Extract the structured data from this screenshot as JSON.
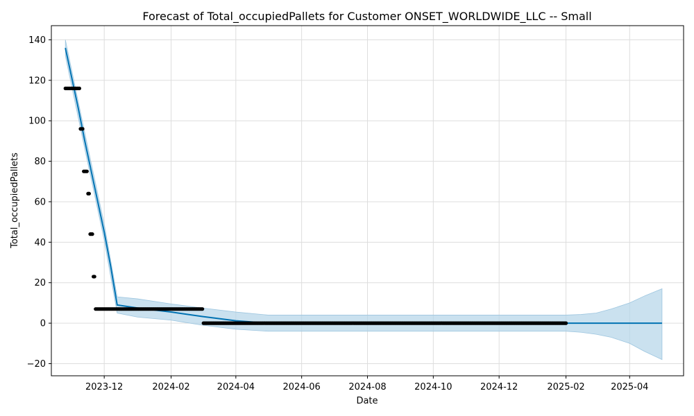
{
  "chart_data": {
    "type": "line",
    "title": "Forecast of Total_occupiedPallets for Customer ONSET_WORLDWIDE_LLC -- Small",
    "xlabel": "Date",
    "ylabel": "Total_occupiedPallets",
    "xlim": [
      "2023-10-13",
      "2025-05-21"
    ],
    "ylim": [
      -26,
      147
    ],
    "grid": true,
    "x_ticks": [
      {
        "date": "2023-12-01",
        "label": "2023-12"
      },
      {
        "date": "2024-02-01",
        "label": "2024-02"
      },
      {
        "date": "2024-04-01",
        "label": "2024-04"
      },
      {
        "date": "2024-06-01",
        "label": "2024-06"
      },
      {
        "date": "2024-08-01",
        "label": "2024-08"
      },
      {
        "date": "2024-10-01",
        "label": "2024-10"
      },
      {
        "date": "2024-12-01",
        "label": "2024-12"
      },
      {
        "date": "2025-02-01",
        "label": "2025-02"
      },
      {
        "date": "2025-04-01",
        "label": "2025-04"
      }
    ],
    "y_ticks": [
      {
        "value": -20,
        "label": "−20"
      },
      {
        "value": 0,
        "label": "0"
      },
      {
        "value": 20,
        "label": "20"
      },
      {
        "value": 40,
        "label": "40"
      },
      {
        "value": 60,
        "label": "60"
      },
      {
        "value": 80,
        "label": "80"
      },
      {
        "value": 100,
        "label": "100"
      },
      {
        "value": 120,
        "label": "120"
      },
      {
        "value": 140,
        "label": "140"
      }
    ],
    "colors": {
      "forecast_line": "#0072B2",
      "uncertainty_band": "#B4D4E8",
      "observed_points": "#000000",
      "grid": "#dddddd"
    },
    "series": [
      {
        "kind": "forecast",
        "points": [
          [
            "2023-10-26",
            136
          ],
          [
            "2023-11-01",
            121
          ],
          [
            "2023-11-07",
            106
          ],
          [
            "2023-11-13",
            90
          ],
          [
            "2023-11-19",
            75
          ],
          [
            "2023-11-25",
            60
          ],
          [
            "2023-12-01",
            45
          ],
          [
            "2023-12-07",
            28
          ],
          [
            "2023-12-13",
            9
          ],
          [
            "2024-01-01",
            7.5
          ],
          [
            "2024-02-01",
            5.5
          ],
          [
            "2024-03-01",
            3.3
          ],
          [
            "2024-04-01",
            1.2
          ],
          [
            "2024-05-01",
            0
          ],
          [
            "2025-05-01",
            0
          ]
        ]
      },
      {
        "kind": "uncertainty",
        "upper": [
          [
            "2023-10-26",
            140
          ],
          [
            "2023-11-13",
            94
          ],
          [
            "2023-12-01",
            49
          ],
          [
            "2023-12-13",
            13
          ],
          [
            "2024-01-01",
            12
          ],
          [
            "2024-02-01",
            9.5
          ],
          [
            "2024-03-01",
            7.5
          ],
          [
            "2024-04-01",
            5.5
          ],
          [
            "2024-05-01",
            4
          ],
          [
            "2024-08-01",
            4
          ],
          [
            "2024-12-01",
            4
          ],
          [
            "2025-02-01",
            4
          ],
          [
            "2025-02-15",
            4.3
          ],
          [
            "2025-03-01",
            5
          ],
          [
            "2025-03-15",
            7
          ],
          [
            "2025-04-01",
            10
          ],
          [
            "2025-04-15",
            13.5
          ],
          [
            "2025-05-01",
            17
          ]
        ],
        "lower": [
          [
            "2023-10-26",
            132
          ],
          [
            "2023-11-13",
            86
          ],
          [
            "2023-12-01",
            41
          ],
          [
            "2023-12-13",
            5
          ],
          [
            "2024-01-01",
            3
          ],
          [
            "2024-02-01",
            1.5
          ],
          [
            "2024-03-01",
            -1
          ],
          [
            "2024-04-01",
            -3
          ],
          [
            "2024-05-01",
            -4
          ],
          [
            "2024-08-01",
            -4
          ],
          [
            "2024-12-01",
            -4
          ],
          [
            "2025-02-01",
            -4
          ],
          [
            "2025-02-15",
            -4.5
          ],
          [
            "2025-03-01",
            -5.5
          ],
          [
            "2025-03-15",
            -7
          ],
          [
            "2025-04-01",
            -10
          ],
          [
            "2025-04-15",
            -14
          ],
          [
            "2025-05-01",
            -18
          ]
        ]
      },
      {
        "kind": "observed",
        "segments": [
          {
            "start": "2023-10-26",
            "end": "2023-10-31",
            "value": 116
          },
          {
            "start": "2023-11-01",
            "end": "2023-11-08",
            "value": 116
          },
          {
            "start": "2023-11-09",
            "end": "2023-11-11",
            "value": 96
          },
          {
            "start": "2023-11-12",
            "end": "2023-11-15",
            "value": 75
          },
          {
            "start": "2023-11-16",
            "end": "2023-11-17",
            "value": 64
          },
          {
            "start": "2023-11-18",
            "end": "2023-11-20",
            "value": 44
          },
          {
            "start": "2023-11-21",
            "end": "2023-11-22",
            "value": 23
          },
          {
            "start": "2023-11-23",
            "end": "2024-03-01",
            "value": 7
          },
          {
            "start": "2024-03-02",
            "end": "2025-02-01",
            "value": 0
          }
        ]
      }
    ]
  }
}
